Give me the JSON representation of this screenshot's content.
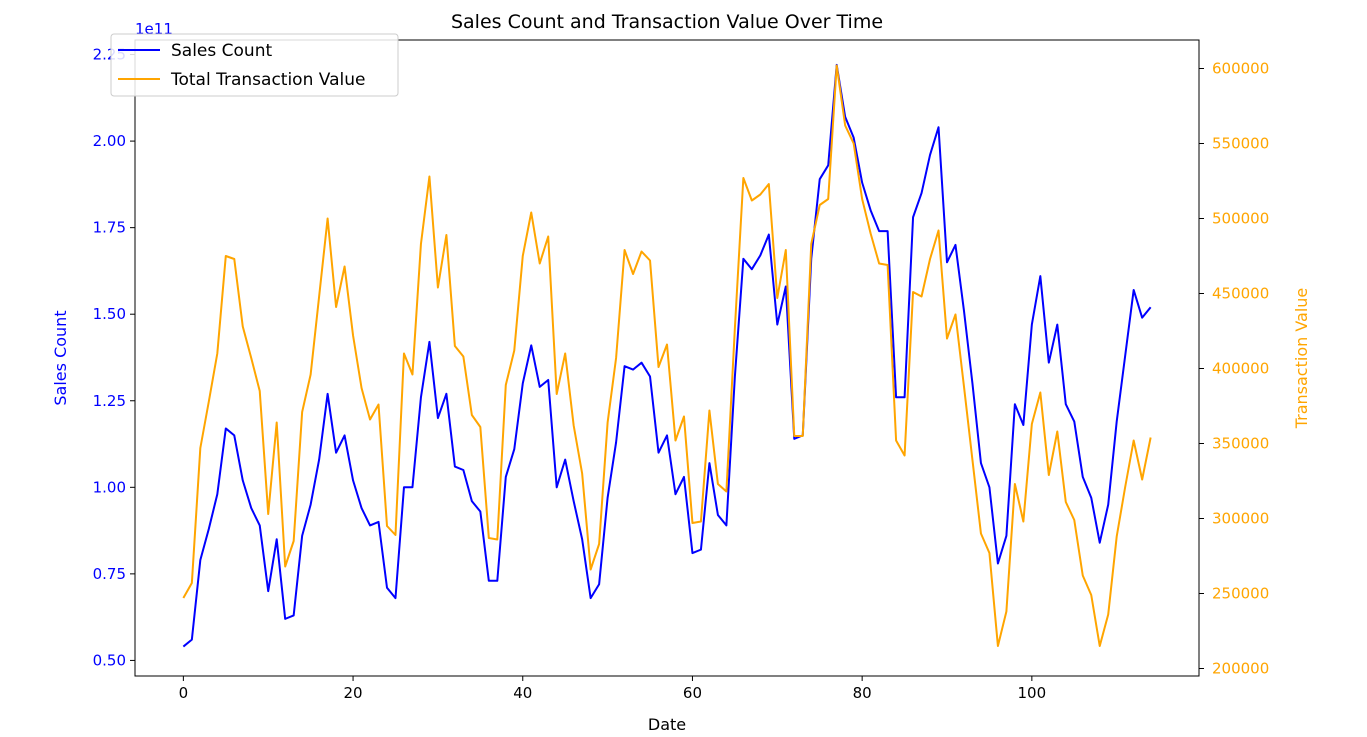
{
  "chart_data": {
    "type": "line",
    "title": "Sales Count and Transaction Value Over Time",
    "xlabel": "Date",
    "ylabel_left": "Sales Count",
    "ylabel_right": "Transaction Value",
    "left_axis_offset_label": "1e11",
    "xlim": [
      -5.7,
      119.7
    ],
    "ylim_left": [
      0.455,
      2.292
    ],
    "ylim_right": [
      195000,
      619000
    ],
    "x_ticks": [
      0,
      20,
      40,
      60,
      80,
      100
    ],
    "y_left_ticks": [
      "0.50",
      "0.75",
      "1.00",
      "1.25",
      "1.50",
      "1.75",
      "2.00",
      "2.25"
    ],
    "y_right_ticks": [
      "200000",
      "250000",
      "300000",
      "350000",
      "400000",
      "450000",
      "500000",
      "550000",
      "600000"
    ],
    "legend_placement": "upper-left",
    "colors": {
      "left": "#0000ff",
      "right": "#ffa500",
      "axis_left_tick": "#0000ff",
      "axis_right_tick": "#ffa500"
    },
    "series": [
      {
        "name": "Sales Count",
        "axis": "left",
        "color": "#0000ff",
        "x": [
          0,
          1,
          2,
          3,
          4,
          5,
          6,
          7,
          8,
          9,
          10,
          11,
          12,
          13,
          14,
          15,
          16,
          17,
          18,
          19,
          20,
          21,
          22,
          23,
          24,
          25,
          26,
          27,
          28,
          29,
          30,
          31,
          32,
          33,
          34,
          35,
          36,
          37,
          38,
          39,
          40,
          41,
          42,
          43,
          44,
          45,
          46,
          47,
          48,
          49,
          50,
          51,
          52,
          53,
          54,
          55,
          56,
          57,
          58,
          59,
          60,
          61,
          62,
          63,
          64,
          65,
          66,
          67,
          68,
          69,
          70,
          71,
          72,
          73,
          74,
          75,
          76,
          77,
          78,
          79,
          80,
          81,
          82,
          83,
          84,
          85,
          86,
          87,
          88,
          89,
          90,
          91,
          92,
          93,
          94,
          95,
          96,
          97,
          98,
          99,
          100,
          101,
          102,
          103,
          104,
          105,
          106,
          107,
          108,
          109,
          110,
          111,
          112,
          113,
          114
        ],
        "values": [
          0.54,
          0.56,
          0.79,
          0.88,
          0.98,
          1.17,
          1.15,
          1.02,
          0.94,
          0.89,
          0.7,
          0.85,
          0.62,
          0.63,
          0.86,
          0.95,
          1.08,
          1.27,
          1.1,
          1.15,
          1.02,
          0.94,
          0.89,
          0.9,
          0.71,
          0.68,
          1.0,
          1.0,
          1.26,
          1.42,
          1.2,
          1.27,
          1.06,
          1.05,
          0.96,
          0.93,
          0.73,
          0.73,
          1.03,
          1.11,
          1.3,
          1.41,
          1.29,
          1.31,
          1.0,
          1.08,
          0.96,
          0.85,
          0.68,
          0.72,
          0.97,
          1.13,
          1.35,
          1.34,
          1.36,
          1.32,
          1.1,
          1.15,
          0.98,
          1.03,
          0.81,
          0.82,
          1.07,
          0.92,
          0.89,
          1.32,
          1.66,
          1.63,
          1.67,
          1.73,
          1.47,
          1.58,
          1.14,
          1.15,
          1.66,
          1.89,
          1.93,
          2.22,
          2.07,
          2.01,
          1.88,
          1.8,
          1.74,
          1.74,
          1.26,
          1.26,
          1.78,
          1.85,
          1.96,
          2.04,
          1.65,
          1.7,
          1.51,
          1.3,
          1.07,
          1.0,
          0.78,
          0.86,
          1.24,
          1.18,
          1.47,
          1.61,
          1.36,
          1.47,
          1.24,
          1.19,
          1.03,
          0.97,
          0.84,
          0.95,
          1.19,
          1.38,
          1.57,
          1.49,
          1.52
        ]
      },
      {
        "name": "Total Transaction Value",
        "axis": "right",
        "color": "#ffa500",
        "x": [
          0,
          1,
          2,
          3,
          4,
          5,
          6,
          7,
          8,
          9,
          10,
          11,
          12,
          13,
          14,
          15,
          16,
          17,
          18,
          19,
          20,
          21,
          22,
          23,
          24,
          25,
          26,
          27,
          28,
          29,
          30,
          31,
          32,
          33,
          34,
          35,
          36,
          37,
          38,
          39,
          40,
          41,
          42,
          43,
          44,
          45,
          46,
          47,
          48,
          49,
          50,
          51,
          52,
          53,
          54,
          55,
          56,
          57,
          58,
          59,
          60,
          61,
          62,
          63,
          64,
          65,
          66,
          67,
          68,
          69,
          70,
          71,
          72,
          73,
          74,
          75,
          76,
          77,
          78,
          79,
          80,
          81,
          82,
          83,
          84,
          85,
          86,
          87,
          88,
          89,
          90,
          91,
          92,
          93,
          94,
          95,
          96,
          97,
          98,
          99,
          100,
          101,
          102,
          103,
          104,
          105,
          106,
          107,
          108,
          109,
          110,
          111,
          112,
          113,
          114
        ],
        "values": [
          247000,
          257000,
          347000,
          378000,
          410000,
          475000,
          473000,
          428000,
          407000,
          385000,
          303000,
          364000,
          268000,
          285000,
          371000,
          396000,
          448000,
          500000,
          441000,
          468000,
          422000,
          387000,
          366000,
          376000,
          295000,
          289000,
          410000,
          396000,
          483000,
          528000,
          454000,
          489000,
          415000,
          408000,
          369000,
          361000,
          287000,
          286000,
          389000,
          412000,
          475000,
          504000,
          470000,
          488000,
          383000,
          410000,
          362000,
          330000,
          266000,
          283000,
          364000,
          407000,
          479000,
          463000,
          478000,
          472000,
          401000,
          416000,
          352000,
          368000,
          297000,
          298000,
          372000,
          323000,
          318000,
          427000,
          527000,
          512000,
          516000,
          523000,
          447000,
          479000,
          355000,
          355000,
          483000,
          509000,
          513000,
          602000,
          562000,
          550000,
          513000,
          490000,
          470000,
          469000,
          352000,
          342000,
          451000,
          448000,
          473000,
          492000,
          420000,
          436000,
          388000,
          339000,
          290000,
          277000,
          215000,
          238000,
          323000,
          298000,
          363000,
          384000,
          329000,
          358000,
          311000,
          299000,
          262000,
          249000,
          215000,
          236000,
          288000,
          321000,
          352000,
          326000,
          354000
        ]
      }
    ]
  }
}
